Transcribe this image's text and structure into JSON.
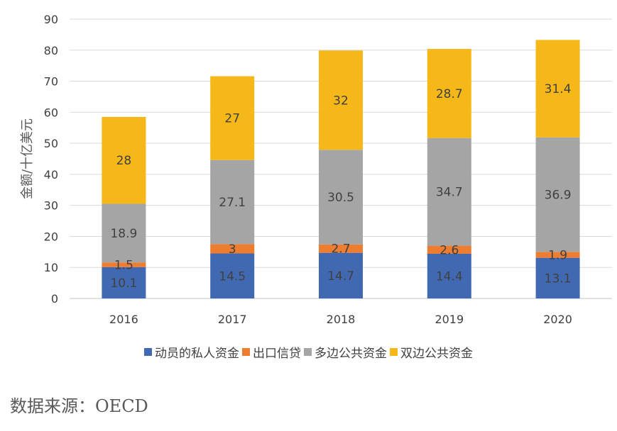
{
  "chart_data": {
    "type": "bar",
    "stacked": true,
    "title": "",
    "xlabel": "",
    "ylabel": "金额/十亿美元",
    "ylim": [
      0,
      90
    ],
    "yticks": [
      0,
      10,
      20,
      30,
      40,
      50,
      60,
      70,
      80,
      90
    ],
    "grid": true,
    "legend_position": "bottom",
    "categories": [
      "2016",
      "2017",
      "2018",
      "2019",
      "2020"
    ],
    "series": [
      {
        "name": "动员的私人资金",
        "color": "#4169B2",
        "values": [
          10.1,
          14.5,
          14.7,
          14.4,
          13.1
        ]
      },
      {
        "name": "出口信贷",
        "color": "#ED7D31",
        "values": [
          1.5,
          3,
          2.7,
          2.6,
          1.9
        ]
      },
      {
        "name": "多边公共资金",
        "color": "#A5A5A5",
        "values": [
          18.9,
          27.1,
          30.5,
          34.7,
          36.9
        ]
      },
      {
        "name": "双边公共资金",
        "color": "#F5B818",
        "values": [
          28,
          27,
          32,
          28.7,
          31.4
        ]
      }
    ],
    "data_labels": [
      [
        "10.1",
        "14.5",
        "14.7",
        "14.4",
        "13.1"
      ],
      [
        "1.5",
        "3",
        "2.7",
        "2.6",
        "1.9"
      ],
      [
        "18.9",
        "27.1",
        "30.5",
        "34.7",
        "36.9"
      ],
      [
        "28",
        "27",
        "32",
        "28.7",
        "31.4"
      ]
    ]
  },
  "source": "数据来源：OECD"
}
